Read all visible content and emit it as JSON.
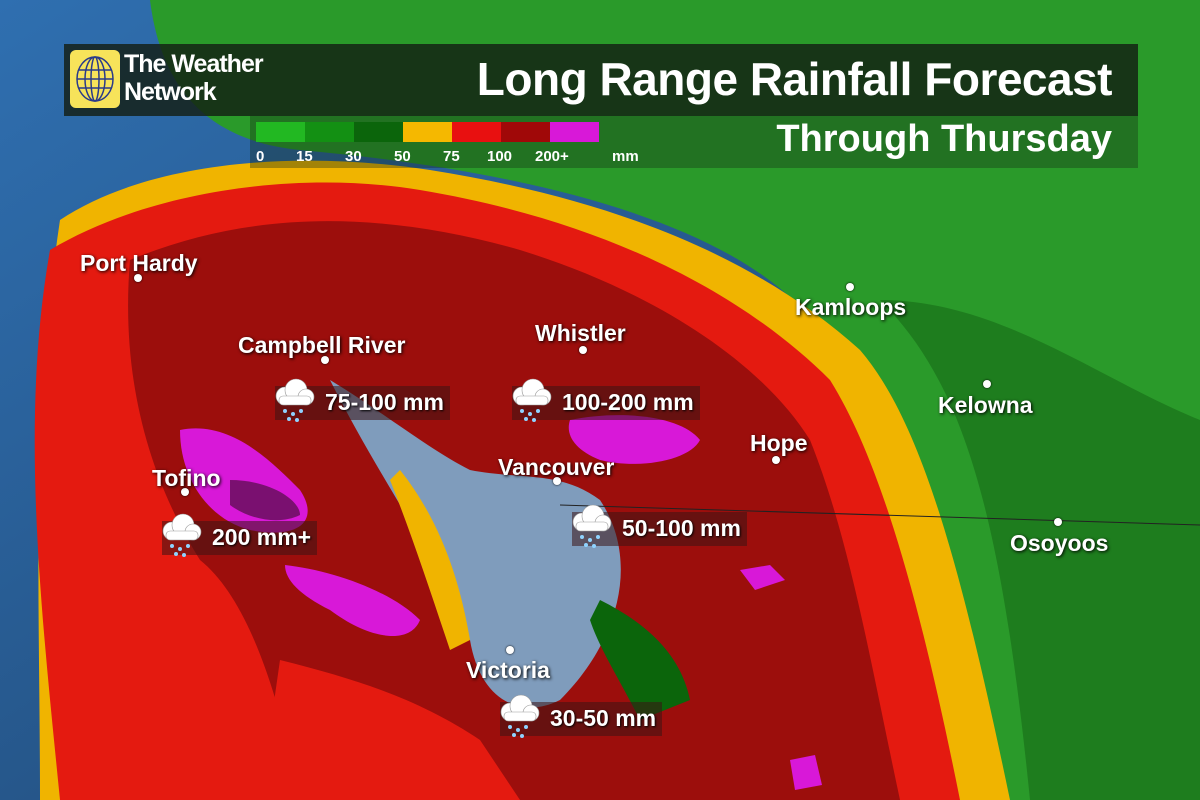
{
  "brand": "The Weather Network",
  "brand_lines": [
    "The Weather",
    "Network"
  ],
  "title": "Long Range Rainfall Forecast",
  "subtitle": "Through Thursday",
  "legend": {
    "colors": [
      "#22b822",
      "#139013",
      "#0b650b",
      "#f5b800",
      "#e81010",
      "#a00808",
      "#d818d8"
    ],
    "ticks": [
      "0",
      "15",
      "30",
      "50",
      "75",
      "100",
      "200+"
    ],
    "unit": "mm"
  },
  "cities": [
    {
      "name": "Port Hardy"
    },
    {
      "name": "Campbell River"
    },
    {
      "name": "Whistler"
    },
    {
      "name": "Kamloops"
    },
    {
      "name": "Kelowna"
    },
    {
      "name": "Hope"
    },
    {
      "name": "Vancouver"
    },
    {
      "name": "Tofino"
    },
    {
      "name": "Osoyoos"
    },
    {
      "name": "Victoria"
    }
  ],
  "rainfall_callouts": [
    {
      "amount": "75-100 mm",
      "icon": "rain-cloud-icon"
    },
    {
      "amount": "100-200 mm",
      "icon": "rain-cloud-icon"
    },
    {
      "amount": "200 mm+",
      "icon": "rain-cloud-icon"
    },
    {
      "amount": "50-100 mm",
      "icon": "rain-cloud-icon"
    },
    {
      "amount": "30-50 mm",
      "icon": "rain-cloud-icon"
    }
  ]
}
